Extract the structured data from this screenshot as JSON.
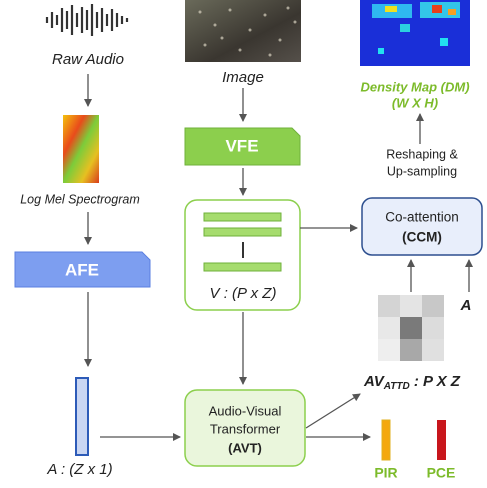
{
  "audio": {
    "label": "Raw Audio",
    "spectrogram_label": "Log Mel Spectrogram",
    "encoder": "AFE",
    "embedding": "A : (Z x 1)"
  },
  "image": {
    "label": "Image",
    "encoder": "VFE",
    "embedding": "V : (P x Z)"
  },
  "transformer": {
    "line1": "Audio-Visual",
    "line2": "Transformer",
    "short": "(AVT)"
  },
  "coattention": {
    "line1": "Co-attention",
    "short": "(CCM)",
    "input": "A"
  },
  "attention_output": {
    "main": "AV",
    "subscript": "ATTD",
    "suffix": " : P X Z"
  },
  "upsampling": {
    "line1": "Reshaping &",
    "line2": "Up-sampling"
  },
  "density_map": {
    "line1": "Density Map (DM)",
    "line2": "(W X H)"
  },
  "outputs": [
    "PIR",
    "PCE"
  ]
}
